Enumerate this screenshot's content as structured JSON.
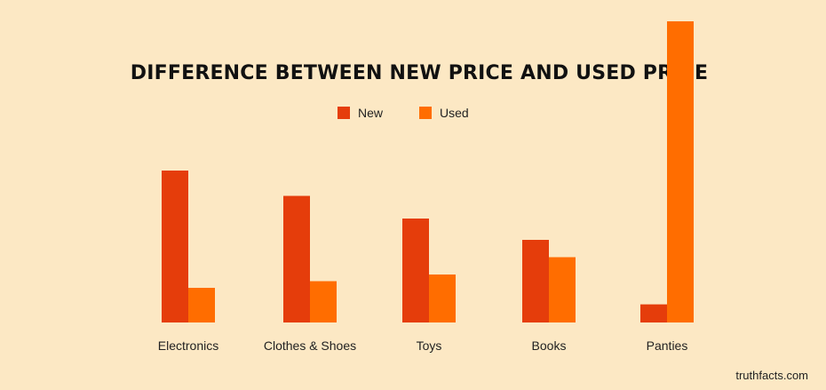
{
  "chart_data": {
    "type": "bar",
    "title": "DIFFERENCE BETWEEN NEW PRICE AND USED PRICE",
    "categories": [
      "Electronics",
      "Clothes & Shoes",
      "Toys",
      "Books",
      "Panties"
    ],
    "series": [
      {
        "name": "New",
        "values": [
          57,
          47.5,
          39,
          31,
          6.8
        ]
      },
      {
        "name": "Used",
        "values": [
          13,
          15.5,
          18,
          24.5,
          113
        ]
      }
    ],
    "ylim": [
      0,
      115
    ],
    "grid": false,
    "legend_position": "top-center"
  },
  "colors": {
    "background": "#FCE8C4",
    "new": "#E53D0B",
    "used": "#FF6D00",
    "text": "#222222"
  },
  "footer": {
    "watermark": "truthfacts.com"
  }
}
